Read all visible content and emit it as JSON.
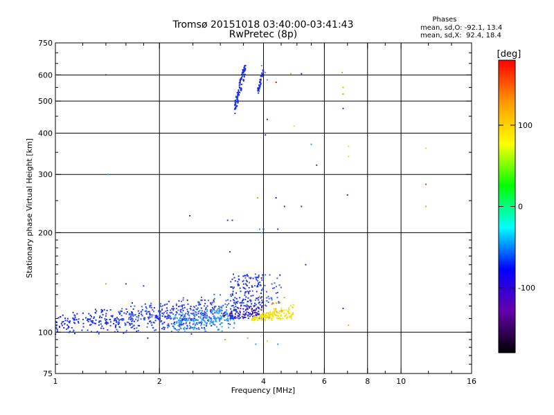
{
  "chart_data": {
    "type": "scatter",
    "title": "Tromsø 20151018 03:40:00-03:41:43",
    "subtitle": "RwPretec (8p)",
    "xlabel": "Frequency [MHz]",
    "ylabel": "Stationary phase Virtual Height [km]",
    "x_scale": "log",
    "y_scale": "log",
    "xlim": [
      1,
      16
    ],
    "ylim": [
      75,
      750
    ],
    "x_ticks": [
      1,
      2,
      4,
      6,
      8,
      10,
      16
    ],
    "y_ticks": [
      75,
      100,
      200,
      300,
      400,
      500,
      600,
      750
    ],
    "x_grid": [
      1,
      2,
      4,
      6,
      8,
      10,
      16
    ],
    "y_grid": [
      100,
      200,
      300,
      400,
      500,
      600
    ],
    "phases_box": {
      "heading": "Phases",
      "line_o": "mean, sd,O: -92.1, 13.4",
      "line_x": "mean, sd,X:  92.4, 18.4"
    },
    "colorbar": {
      "label": "[deg]",
      "range": [
        -180,
        180
      ],
      "ticks": [
        100,
        0,
        -100
      ],
      "tick_labels": [
        "100",
        "0",
        "-100"
      ],
      "colors": [
        "#ff0000",
        "#ff9900",
        "#ffff00",
        "#00ff00",
        "#00ffff",
        "#0000ff",
        "#6600aa",
        "#000000"
      ]
    },
    "clusters": [
      {
        "name": "low_blue",
        "color": "#1c2ee0",
        "n": 380,
        "x": [
          1.0,
          2.9
        ],
        "y": [
          98,
          125
        ]
      },
      {
        "name": "low_blue_b",
        "color": "#3a5cf0",
        "n": 240,
        "x": [
          1.5,
          3.3
        ],
        "y": [
          100,
          130
        ]
      },
      {
        "name": "low_cyan",
        "color": "#2e9ef0",
        "n": 180,
        "x": [
          2.2,
          3.3
        ],
        "y": [
          100,
          120
        ]
      },
      {
        "name": "low_purple",
        "color": "#4a10a0",
        "n": 60,
        "x": [
          3.0,
          3.9
        ],
        "y": [
          108,
          120
        ]
      },
      {
        "name": "blob_blue",
        "color": "#1c2ee0",
        "n": 180,
        "x": [
          3.2,
          4.0
        ],
        "y": [
          110,
          150
        ]
      },
      {
        "name": "blob_blue_b",
        "color": "#3a5cf0",
        "n": 60,
        "x": [
          3.5,
          4.5
        ],
        "y": [
          120,
          150
        ]
      },
      {
        "name": "yellow",
        "color": "#f0e000",
        "n": 150,
        "x": [
          3.7,
          4.9
        ],
        "y": [
          108,
          122
        ]
      },
      {
        "name": "orange_few",
        "color": "#f0a000",
        "n": 12,
        "x": [
          3.9,
          4.8
        ],
        "y": [
          108,
          140
        ]
      },
      {
        "name": "column_a",
        "color": "#1c2ee0",
        "n": 100,
        "x": [
          3.3,
          3.55
        ],
        "y": [
          450,
          640
        ]
      },
      {
        "name": "column_b",
        "color": "#1c2ee0",
        "n": 45,
        "x": [
          3.85,
          4.0
        ],
        "y": [
          520,
          620
        ]
      }
    ],
    "points": [
      {
        "x": 1.4,
        "y": 600,
        "color": "#1c2ee0"
      },
      {
        "x": 1.42,
        "y": 300,
        "color": "#2e9ef0"
      },
      {
        "x": 1.4,
        "y": 140,
        "color": "#f0a000"
      },
      {
        "x": 1.6,
        "y": 140,
        "color": "#1c2ee0"
      },
      {
        "x": 1.8,
        "y": 138,
        "color": "#1c2ee0"
      },
      {
        "x": 2.45,
        "y": 225,
        "color": "#1c2ee0"
      },
      {
        "x": 3.15,
        "y": 218,
        "color": "#1c2ee0"
      },
      {
        "x": 3.25,
        "y": 218,
        "color": "#1c2ee0"
      },
      {
        "x": 3.2,
        "y": 175,
        "color": "#1c2ee0"
      },
      {
        "x": 3.9,
        "y": 205,
        "color": "#2e9ef0"
      },
      {
        "x": 3.95,
        "y": 200,
        "color": "#2e9ef0"
      },
      {
        "x": 4.0,
        "y": 205,
        "color": "#1c2ee0"
      },
      {
        "x": 4.4,
        "y": 205,
        "color": "#1c2ee0"
      },
      {
        "x": 3.85,
        "y": 255,
        "color": "#f0a000"
      },
      {
        "x": 4.35,
        "y": 255,
        "color": "#1c2ee0"
      },
      {
        "x": 4.6,
        "y": 240,
        "color": "#1c2ee0"
      },
      {
        "x": 4.1,
        "y": 440,
        "color": "#1c2ee0"
      },
      {
        "x": 4.05,
        "y": 395,
        "color": "#1c2ee0"
      },
      {
        "x": 4.05,
        "y": 610,
        "color": "#2e9ef0"
      },
      {
        "x": 3.95,
        "y": 640,
        "color": "#2e9ef0"
      },
      {
        "x": 4.1,
        "y": 580,
        "color": "#2e9ef0"
      },
      {
        "x": 4.35,
        "y": 570,
        "color": "#ff0000"
      },
      {
        "x": 4.8,
        "y": 605,
        "color": "#f0a000"
      },
      {
        "x": 5.15,
        "y": 605,
        "color": "#1c2ee0"
      },
      {
        "x": 4.9,
        "y": 420,
        "color": "#f0e000"
      },
      {
        "x": 5.5,
        "y": 370,
        "color": "#2e9ef0"
      },
      {
        "x": 5.7,
        "y": 320,
        "color": "#1c2ee0"
      },
      {
        "x": 5.15,
        "y": 240,
        "color": "#1c2ee0"
      },
      {
        "x": 5.3,
        "y": 160,
        "color": "#1c2ee0"
      },
      {
        "x": 6.75,
        "y": 610,
        "color": "#f0a000"
      },
      {
        "x": 6.8,
        "y": 550,
        "color": "#f0a000"
      },
      {
        "x": 6.8,
        "y": 525,
        "color": "#f0a000"
      },
      {
        "x": 6.8,
        "y": 475,
        "color": "#1c2ee0"
      },
      {
        "x": 7.05,
        "y": 365,
        "color": "#f0e000"
      },
      {
        "x": 7.05,
        "y": 340,
        "color": "#f0e000"
      },
      {
        "x": 7.0,
        "y": 260,
        "color": "#1c2ee0"
      },
      {
        "x": 6.8,
        "y": 118,
        "color": "#1c2ee0"
      },
      {
        "x": 7.05,
        "y": 105,
        "color": "#f0a000"
      },
      {
        "x": 11.8,
        "y": 360,
        "color": "#f0e000"
      },
      {
        "x": 11.8,
        "y": 280,
        "color": "#ff3000"
      },
      {
        "x": 11.8,
        "y": 240,
        "color": "#f0a000"
      },
      {
        "x": 3.1,
        "y": 95,
        "color": "#f0a000"
      },
      {
        "x": 3.6,
        "y": 96,
        "color": "#f0a000"
      },
      {
        "x": 3.8,
        "y": 92,
        "color": "#2e9ef0"
      },
      {
        "x": 4.4,
        "y": 92,
        "color": "#2e9ef0"
      },
      {
        "x": 4.1,
        "y": 94,
        "color": "#f0e000"
      },
      {
        "x": 1.85,
        "y": 96,
        "color": "#4a10a0"
      },
      {
        "x": 1.6,
        "y": 100,
        "color": "#1c2ee0"
      }
    ]
  }
}
